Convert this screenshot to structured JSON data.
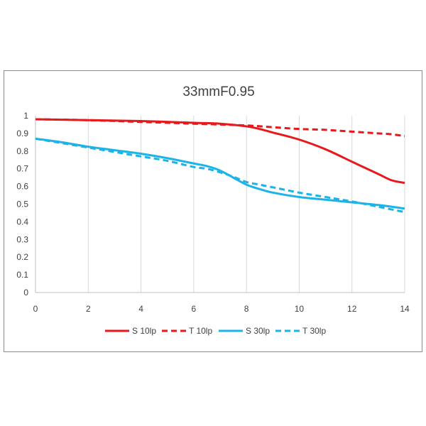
{
  "chart_data": {
    "type": "line",
    "title": "33mmF0.95",
    "xlabel": "",
    "ylabel": "",
    "xlim": [
      0,
      14
    ],
    "ylim": [
      0,
      1
    ],
    "x_ticks": [
      "0",
      "2",
      "4",
      "6",
      "8",
      "10",
      "12",
      "14"
    ],
    "y_ticks": [
      "0",
      "0.1",
      "0.2",
      "0.3",
      "0.4",
      "0.5",
      "0.6",
      "0.7",
      "0.8",
      "0.9",
      "1"
    ],
    "grid": "vertical",
    "legend_position": "bottom",
    "series": [
      {
        "name": "S 10lp",
        "color": "#e8191c",
        "dashed": false,
        "points": [
          [
            0,
            0.98
          ],
          [
            2,
            0.975
          ],
          [
            4,
            0.97
          ],
          [
            6,
            0.96
          ],
          [
            7,
            0.955
          ],
          [
            8,
            0.94
          ],
          [
            8.5,
            0.925
          ],
          [
            9,
            0.905
          ],
          [
            10,
            0.865
          ],
          [
            11,
            0.81
          ],
          [
            12,
            0.74
          ],
          [
            13,
            0.67
          ],
          [
            13.5,
            0.635
          ],
          [
            14,
            0.62
          ]
        ]
      },
      {
        "name": "T 10lp",
        "color": "#e8191c",
        "dashed": true,
        "points": [
          [
            0,
            0.98
          ],
          [
            2,
            0.975
          ],
          [
            4,
            0.965
          ],
          [
            6,
            0.955
          ],
          [
            8,
            0.945
          ],
          [
            9,
            0.935
          ],
          [
            10,
            0.925
          ],
          [
            11,
            0.92
          ],
          [
            12,
            0.91
          ],
          [
            13,
            0.9
          ],
          [
            13.5,
            0.895
          ],
          [
            14,
            0.885
          ]
        ]
      },
      {
        "name": "S 30lp",
        "color": "#1cb3e8",
        "dashed": false,
        "points": [
          [
            0,
            0.87
          ],
          [
            1,
            0.85
          ],
          [
            2,
            0.825
          ],
          [
            3,
            0.805
          ],
          [
            4,
            0.785
          ],
          [
            5,
            0.76
          ],
          [
            6,
            0.73
          ],
          [
            6.5,
            0.715
          ],
          [
            7,
            0.69
          ],
          [
            7.5,
            0.65
          ],
          [
            8,
            0.61
          ],
          [
            8.5,
            0.585
          ],
          [
            9,
            0.565
          ],
          [
            10,
            0.54
          ],
          [
            11,
            0.525
          ],
          [
            12,
            0.51
          ],
          [
            13,
            0.495
          ],
          [
            14,
            0.475
          ]
        ]
      },
      {
        "name": "T 30lp",
        "color": "#1cb3e8",
        "dashed": true,
        "points": [
          [
            0,
            0.87
          ],
          [
            1,
            0.845
          ],
          [
            2,
            0.82
          ],
          [
            3,
            0.795
          ],
          [
            4,
            0.77
          ],
          [
            5,
            0.745
          ],
          [
            6,
            0.71
          ],
          [
            6.5,
            0.7
          ],
          [
            7,
            0.68
          ],
          [
            7.5,
            0.655
          ],
          [
            8,
            0.625
          ],
          [
            8.5,
            0.61
          ],
          [
            9,
            0.595
          ],
          [
            10,
            0.565
          ],
          [
            11,
            0.54
          ],
          [
            12,
            0.515
          ],
          [
            13,
            0.485
          ],
          [
            14,
            0.455
          ]
        ]
      }
    ]
  }
}
